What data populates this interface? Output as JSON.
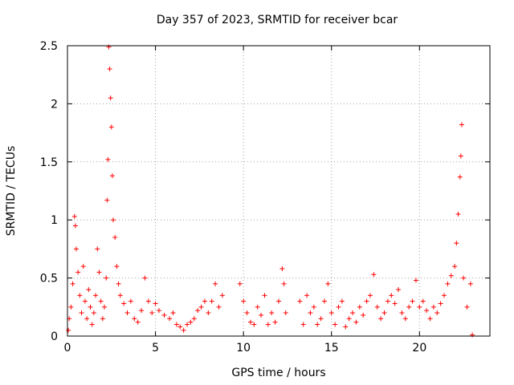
{
  "chart_data": {
    "type": "scatter",
    "title": "Day 357 of 2023, SRMTID for receiver bcar",
    "xlabel": "GPS time / hours",
    "ylabel": "SRMTID / TECUs",
    "xlim": [
      0,
      24
    ],
    "ylim": [
      0,
      2.5
    ],
    "xticks": [
      "0",
      "5",
      "10",
      "15",
      "20"
    ],
    "xtick_values": [
      0,
      5,
      10,
      15,
      20
    ],
    "yticks": [
      "0",
      "0.5",
      "1",
      "1.5",
      "2",
      "2.5"
    ],
    "ytick_values": [
      0,
      0.5,
      1,
      1.5,
      2,
      2.5
    ],
    "grid": true,
    "marker": "+",
    "color": "#ff0000",
    "series": [
      {
        "name": "SRMTID",
        "points": [
          [
            0.05,
            0.05
          ],
          [
            0.1,
            0.15
          ],
          [
            0.2,
            0.25
          ],
          [
            0.3,
            0.45
          ],
          [
            0.4,
            1.03
          ],
          [
            0.45,
            0.95
          ],
          [
            0.5,
            0.75
          ],
          [
            0.6,
            0.55
          ],
          [
            0.7,
            0.35
          ],
          [
            0.8,
            0.2
          ],
          [
            0.9,
            0.6
          ],
          [
            1.0,
            0.3
          ],
          [
            1.1,
            0.15
          ],
          [
            1.2,
            0.4
          ],
          [
            1.3,
            0.25
          ],
          [
            1.4,
            0.1
          ],
          [
            1.5,
            0.2
          ],
          [
            1.6,
            0.35
          ],
          [
            1.7,
            0.75
          ],
          [
            1.8,
            0.55
          ],
          [
            1.9,
            0.3
          ],
          [
            2.0,
            0.15
          ],
          [
            2.1,
            0.25
          ],
          [
            2.2,
            0.5
          ],
          [
            2.25,
            1.17
          ],
          [
            2.3,
            1.52
          ],
          [
            2.35,
            2.49
          ],
          [
            2.4,
            2.3
          ],
          [
            2.45,
            2.05
          ],
          [
            2.5,
            1.8
          ],
          [
            2.55,
            1.38
          ],
          [
            2.6,
            1.0
          ],
          [
            2.7,
            0.85
          ],
          [
            2.8,
            0.6
          ],
          [
            2.9,
            0.45
          ],
          [
            3.0,
            0.35
          ],
          [
            3.2,
            0.28
          ],
          [
            3.4,
            0.2
          ],
          [
            3.6,
            0.3
          ],
          [
            3.8,
            0.15
          ],
          [
            4.0,
            0.12
          ],
          [
            4.2,
            0.22
          ],
          [
            4.4,
            0.5
          ],
          [
            4.6,
            0.3
          ],
          [
            4.8,
            0.2
          ],
          [
            5.0,
            0.28
          ],
          [
            5.2,
            0.22
          ],
          [
            5.5,
            0.18
          ],
          [
            5.8,
            0.15
          ],
          [
            6.0,
            0.2
          ],
          [
            6.2,
            0.1
          ],
          [
            6.4,
            0.08
          ],
          [
            6.6,
            0.05
          ],
          [
            6.8,
            0.1
          ],
          [
            7.0,
            0.12
          ],
          [
            7.2,
            0.15
          ],
          [
            7.4,
            0.22
          ],
          [
            7.6,
            0.25
          ],
          [
            7.8,
            0.3
          ],
          [
            8.0,
            0.2
          ],
          [
            8.2,
            0.3
          ],
          [
            8.4,
            0.45
          ],
          [
            8.6,
            0.25
          ],
          [
            8.8,
            0.35
          ],
          [
            9.8,
            0.45
          ],
          [
            10.0,
            0.3
          ],
          [
            10.2,
            0.2
          ],
          [
            10.4,
            0.12
          ],
          [
            10.6,
            0.1
          ],
          [
            10.8,
            0.25
          ],
          [
            11.0,
            0.18
          ],
          [
            11.2,
            0.35
          ],
          [
            11.4,
            0.1
          ],
          [
            11.6,
            0.2
          ],
          [
            11.8,
            0.12
          ],
          [
            12.0,
            0.3
          ],
          [
            12.2,
            0.58
          ],
          [
            12.3,
            0.45
          ],
          [
            12.4,
            0.2
          ],
          [
            13.2,
            0.3
          ],
          [
            13.4,
            0.1
          ],
          [
            13.6,
            0.35
          ],
          [
            13.8,
            0.2
          ],
          [
            14.0,
            0.25
          ],
          [
            14.2,
            0.1
          ],
          [
            14.4,
            0.15
          ],
          [
            14.6,
            0.3
          ],
          [
            14.8,
            0.45
          ],
          [
            15.0,
            0.2
          ],
          [
            15.2,
            0.1
          ],
          [
            15.4,
            0.25
          ],
          [
            15.6,
            0.3
          ],
          [
            15.8,
            0.08
          ],
          [
            16.0,
            0.15
          ],
          [
            16.2,
            0.2
          ],
          [
            16.4,
            0.12
          ],
          [
            16.6,
            0.25
          ],
          [
            16.8,
            0.18
          ],
          [
            17.0,
            0.3
          ],
          [
            17.2,
            0.35
          ],
          [
            17.4,
            0.53
          ],
          [
            17.6,
            0.25
          ],
          [
            17.8,
            0.15
          ],
          [
            18.0,
            0.2
          ],
          [
            18.2,
            0.3
          ],
          [
            18.4,
            0.35
          ],
          [
            18.6,
            0.28
          ],
          [
            18.8,
            0.4
          ],
          [
            19.0,
            0.2
          ],
          [
            19.2,
            0.15
          ],
          [
            19.4,
            0.25
          ],
          [
            19.6,
            0.3
          ],
          [
            19.8,
            0.48
          ],
          [
            20.0,
            0.25
          ],
          [
            20.2,
            0.3
          ],
          [
            20.4,
            0.22
          ],
          [
            20.6,
            0.15
          ],
          [
            20.8,
            0.25
          ],
          [
            21.0,
            0.2
          ],
          [
            21.2,
            0.28
          ],
          [
            21.4,
            0.35
          ],
          [
            21.6,
            0.45
          ],
          [
            21.8,
            0.52
          ],
          [
            22.0,
            0.6
          ],
          [
            22.1,
            0.8
          ],
          [
            22.2,
            1.05
          ],
          [
            22.3,
            1.37
          ],
          [
            22.35,
            1.55
          ],
          [
            22.4,
            1.82
          ],
          [
            22.5,
            0.5
          ],
          [
            22.7,
            0.25
          ],
          [
            22.9,
            0.45
          ],
          [
            23.0,
            0.01
          ]
        ]
      }
    ]
  }
}
